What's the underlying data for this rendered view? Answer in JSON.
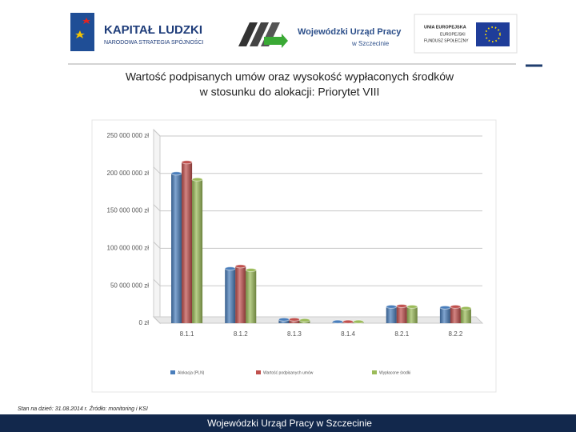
{
  "header": {
    "logo_left": [
      "KAPITAŁ LUDZKI",
      "NARODOWA STRATEGIA SPÓJNOŚCI"
    ],
    "logo_center": [
      "Wojewódzki Urząd Pracy",
      "w Szczecinie"
    ],
    "logo_right": [
      "UNIA EUROPEJSKA",
      "EUROPEJSKI",
      "FUNDUSZ SPOŁECZNY"
    ]
  },
  "chart_data": {
    "type": "bar",
    "title": [
      "Wartość podpisanych umów oraz wysokość wypłaconych środków",
      "w stosunku do alokacji: Priorytet VIII"
    ],
    "categories": [
      "8.1.1",
      "8.1.2",
      "8.1.3",
      "8.1.4",
      "8.2.1",
      "8.2.2"
    ],
    "series": [
      {
        "name": "Alokacja (PLN)",
        "color": "#4a7ebb",
        "values": [
          200000000,
          73000000,
          5000000,
          2000000,
          22000000,
          21000000
        ]
      },
      {
        "name": "Wartość podpisanych umów",
        "color": "#c0504d",
        "values": [
          215000000,
          76000000,
          5000000,
          2000000,
          23000000,
          22000000
        ]
      },
      {
        "name": "Wypłacone środki",
        "color": "#9bbb59",
        "values": [
          192000000,
          71000000,
          4000000,
          2000000,
          22000000,
          20000000
        ]
      }
    ],
    "ylim": [
      0,
      250000000
    ],
    "yticks": [
      {
        "value": 0,
        "label": "0 zł"
      },
      {
        "value": 50000000,
        "label": "50 000 000 zł"
      },
      {
        "value": 100000000,
        "label": "100 000 000 zł"
      },
      {
        "value": 150000000,
        "label": "150 000 000 zł"
      },
      {
        "value": 200000000,
        "label": "200 000 000 zł"
      },
      {
        "value": 250000000,
        "label": "250 000 000 zł"
      }
    ],
    "grid": true
  },
  "footnote": "Stan na dzień: 31.08.2014 r. Źródło: monitoring i KSI",
  "footer": "Wojewódzki Urząd Pracy w Szczecinie"
}
